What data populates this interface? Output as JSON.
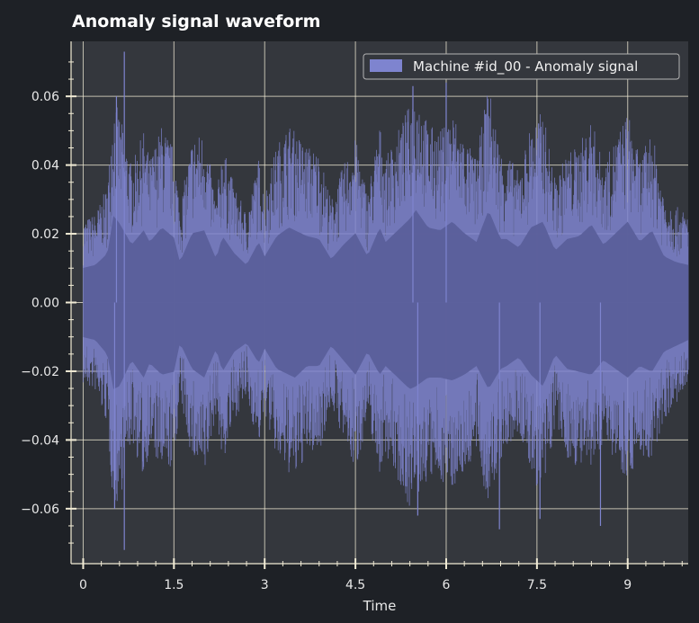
{
  "chart_data": {
    "type": "area",
    "title": "Anomaly signal waveform",
    "xlabel": "Time",
    "ylabel": "",
    "xlim": [
      -0.2,
      10.0
    ],
    "ylim": [
      -0.076,
      0.076
    ],
    "xticks": [
      0,
      1.5,
      3,
      4.5,
      6,
      7.5,
      9
    ],
    "xtick_labels": [
      "0",
      "1.5",
      "3",
      "4.5",
      "6",
      "7.5",
      "9"
    ],
    "yticks": [
      0.06,
      0.04,
      0.02,
      0.0,
      -0.02,
      -0.04,
      -0.06
    ],
    "ytick_labels": [
      "0.06",
      "0.04",
      "0.02",
      "0.00",
      "−0.02",
      "−0.04",
      "−0.06"
    ],
    "grid": true,
    "legend_position": "top-right",
    "series": [
      {
        "name": "Machine #id_00 - Anomaly signal",
        "color": "#7e84cf",
        "x": [
          0.0,
          0.2,
          0.4,
          0.5,
          0.6,
          0.8,
          1.0,
          1.1,
          1.3,
          1.5,
          1.6,
          1.8,
          2.0,
          2.2,
          2.3,
          2.5,
          2.7,
          2.9,
          3.0,
          3.2,
          3.4,
          3.5,
          3.7,
          3.9,
          4.1,
          4.3,
          4.5,
          4.7,
          4.9,
          5.0,
          5.2,
          5.4,
          5.5,
          5.7,
          5.9,
          6.1,
          6.3,
          6.5,
          6.7,
          6.9,
          7.0,
          7.2,
          7.4,
          7.6,
          7.8,
          8.0,
          8.2,
          8.4,
          8.6,
          8.8,
          9.0,
          9.2,
          9.4,
          9.6,
          9.8,
          10.0
        ],
        "envelope_max": [
          0.024,
          0.026,
          0.034,
          0.06,
          0.055,
          0.04,
          0.05,
          0.042,
          0.052,
          0.045,
          0.028,
          0.048,
          0.05,
          0.03,
          0.046,
          0.034,
          0.026,
          0.042,
          0.032,
          0.046,
          0.052,
          0.05,
          0.046,
          0.044,
          0.03,
          0.04,
          0.048,
          0.032,
          0.052,
          0.042,
          0.05,
          0.058,
          0.064,
          0.052,
          0.05,
          0.056,
          0.048,
          0.042,
          0.064,
          0.044,
          0.044,
          0.038,
          0.052,
          0.056,
          0.036,
          0.044,
          0.046,
          0.054,
          0.04,
          0.048,
          0.056,
          0.042,
          0.05,
          0.032,
          0.028,
          0.026
        ],
        "envelope_min": [
          -0.024,
          -0.026,
          -0.036,
          -0.06,
          -0.058,
          -0.04,
          -0.052,
          -0.042,
          -0.05,
          -0.048,
          -0.028,
          -0.046,
          -0.052,
          -0.032,
          -0.048,
          -0.034,
          -0.028,
          -0.042,
          -0.032,
          -0.046,
          -0.05,
          -0.052,
          -0.044,
          -0.044,
          -0.03,
          -0.04,
          -0.05,
          -0.034,
          -0.05,
          -0.044,
          -0.052,
          -0.06,
          -0.058,
          -0.052,
          -0.052,
          -0.054,
          -0.05,
          -0.044,
          -0.06,
          -0.046,
          -0.044,
          -0.038,
          -0.05,
          -0.058,
          -0.036,
          -0.046,
          -0.048,
          -0.05,
          -0.04,
          -0.046,
          -0.052,
          -0.044,
          -0.048,
          -0.034,
          -0.03,
          -0.026
        ],
        "peaks": [
          {
            "x": 0.55,
            "y": 0.06
          },
          {
            "x": 0.68,
            "y": 0.073
          },
          {
            "x": 0.68,
            "y": -0.072
          },
          {
            "x": 0.52,
            "y": -0.06
          },
          {
            "x": 5.45,
            "y": 0.063
          },
          {
            "x": 5.53,
            "y": -0.062
          },
          {
            "x": 6.0,
            "y": 0.064
          },
          {
            "x": 6.88,
            "y": -0.066
          },
          {
            "x": 7.55,
            "y": -0.063
          },
          {
            "x": 8.55,
            "y": -0.065
          }
        ]
      }
    ]
  }
}
